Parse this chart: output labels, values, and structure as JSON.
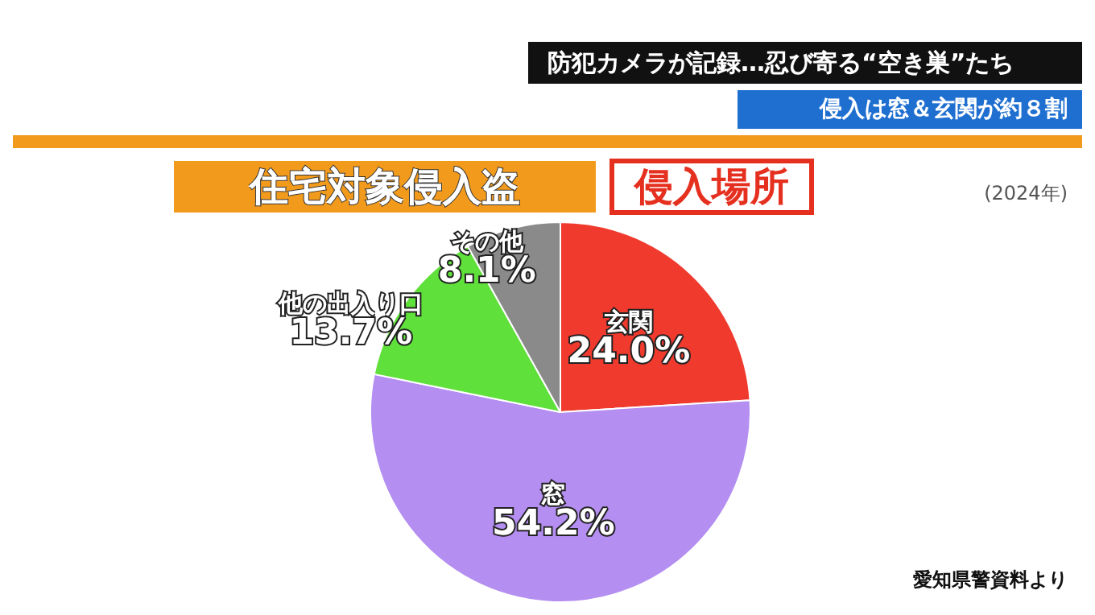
{
  "chart_data": {
    "type": "pie",
    "title": "住宅対象侵入盗",
    "subtitle": "侵入場所",
    "annotations": [
      "防犯カメラが記録…忍び寄る“空き巣”たち",
      "侵入は窓＆玄関が約８割",
      "(2024年)",
      "愛知県警資料より"
    ],
    "categories": [
      "玄関",
      "窓",
      "他の出入り口",
      "その他"
    ],
    "values": [
      24.0,
      54.2,
      13.7,
      8.1
    ],
    "value_labels": [
      "24.0%",
      "54.2%",
      "13.7%",
      "8.1%"
    ],
    "colors": [
      "#f03a2e",
      "#b48ef0",
      "#5fe03a",
      "#8a8a8a"
    ],
    "legend": false
  }
}
